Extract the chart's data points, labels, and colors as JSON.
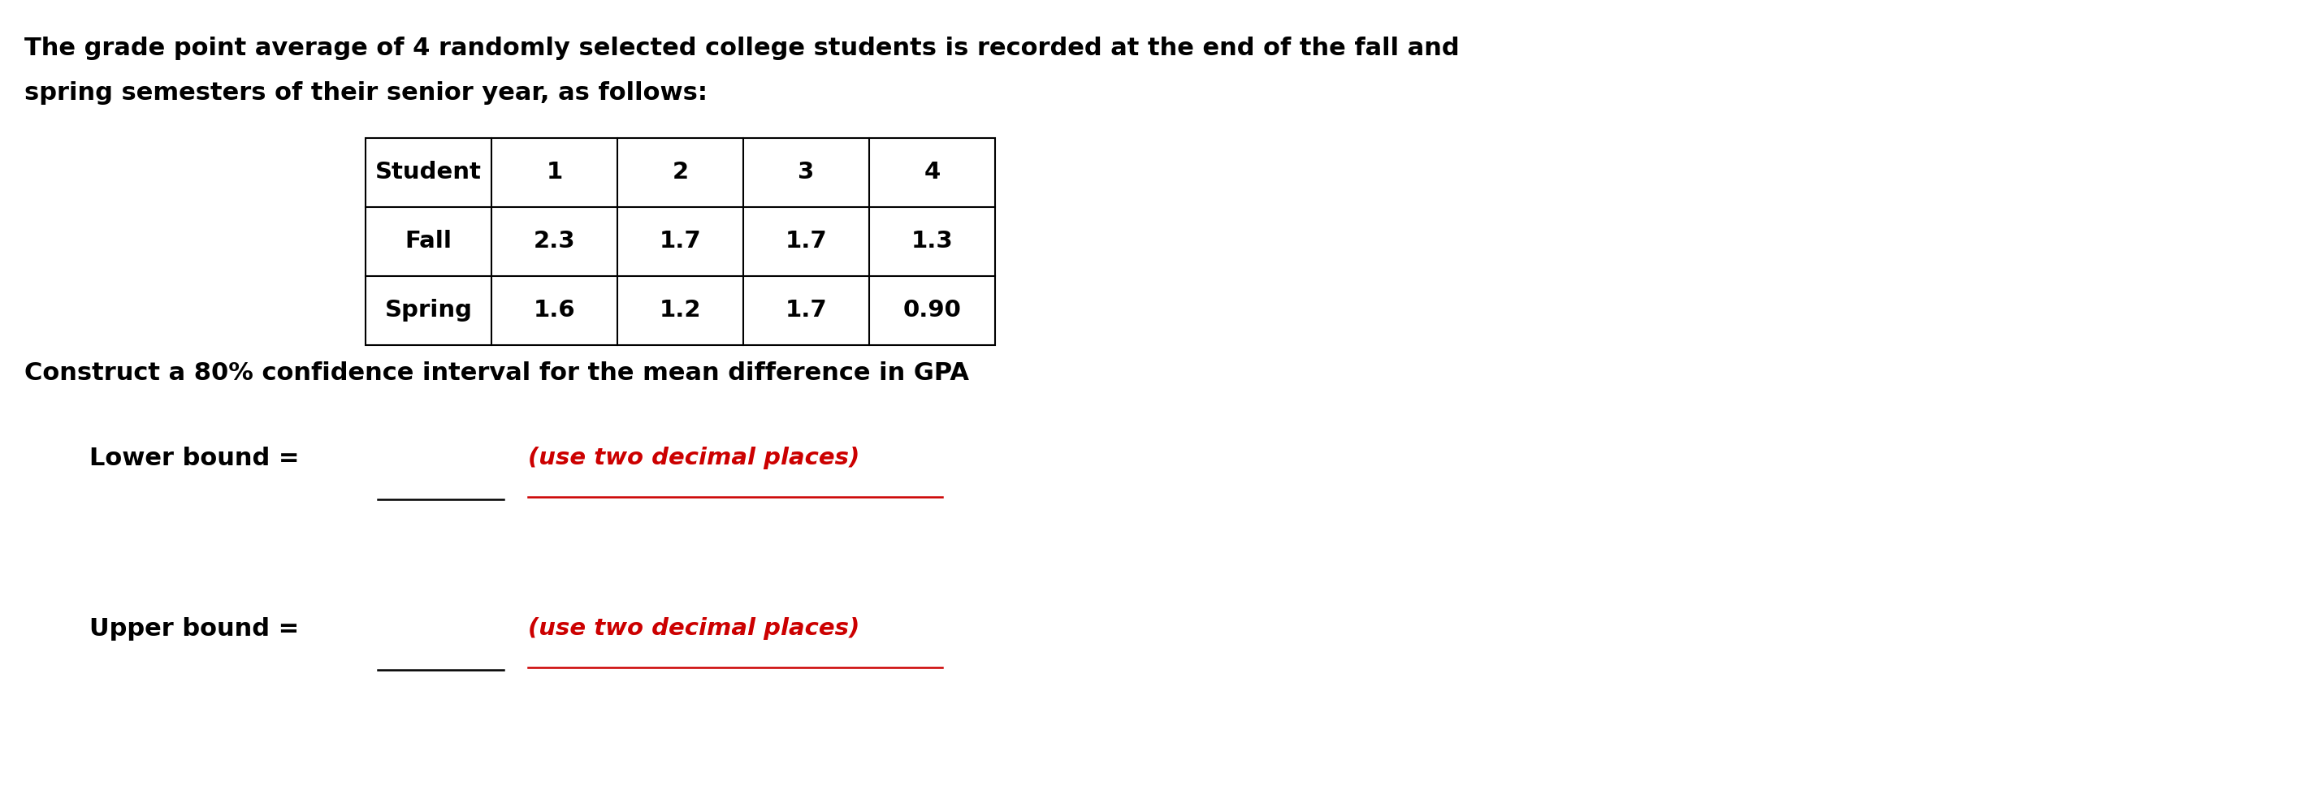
{
  "intro_text_line1": "The grade point average of 4 randomly selected college students is recorded at the end of the fall and",
  "intro_text_line2": "spring semesters of their senior year, as follows:",
  "table_headers": [
    "Student",
    "1",
    "2",
    "3",
    "4"
  ],
  "table_row1_label": "Fall",
  "table_row1_values": [
    "2.3",
    "1.7",
    "1.7",
    "1.3"
  ],
  "table_row2_label": "Spring",
  "table_row2_values": [
    "1.6",
    "1.2",
    "1.7",
    "0.90"
  ],
  "question_text": "Construct a 80% confidence interval for the mean difference in GPA",
  "lower_bound_label": "Lower bound =",
  "upper_bound_label": "Upper bound =",
  "answer_hint": "(use two decimal places)",
  "text_color_black": "#000000",
  "text_color_red": "#cc0000",
  "background_color": "#ffffff",
  "font_size_body": 22,
  "font_size_table": 21,
  "font_size_hint": 21
}
